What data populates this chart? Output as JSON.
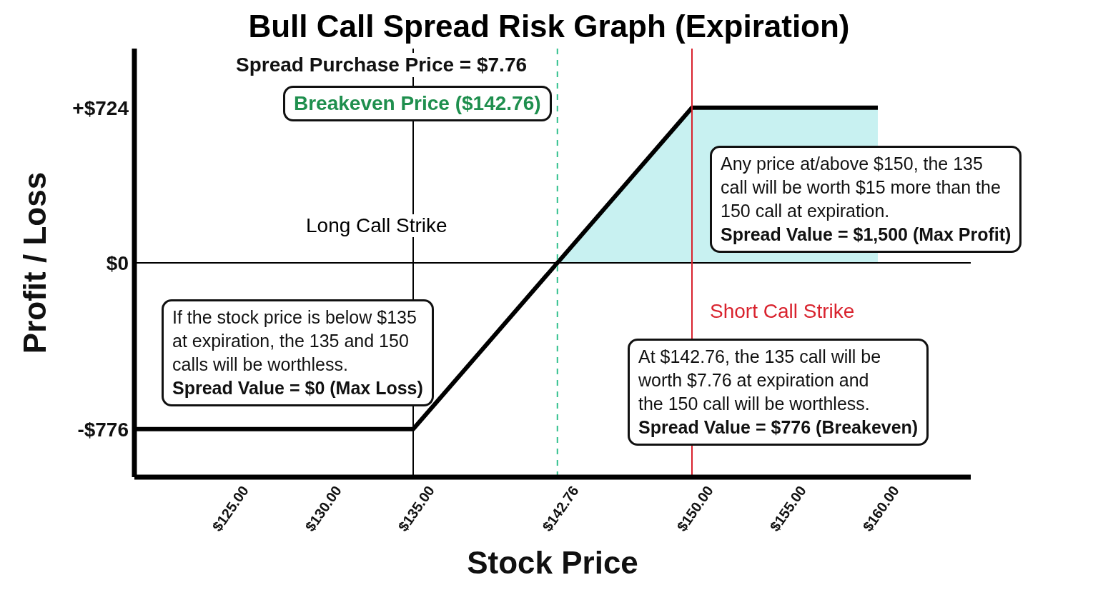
{
  "chart_data": {
    "type": "line",
    "title": "Bull Call Spread Risk Graph (Expiration)",
    "xlabel": "Stock Price",
    "ylabel": "Profit / Loss",
    "xlim": [
      120,
      165
    ],
    "xticks": [
      {
        "value": 125,
        "label": "$125.00"
      },
      {
        "value": 130,
        "label": "$130.00"
      },
      {
        "value": 135,
        "label": "$135.00"
      },
      {
        "value": 142.76,
        "label": "$142.76"
      },
      {
        "value": 150,
        "label": "$150.00"
      },
      {
        "value": 155,
        "label": "$155.00"
      },
      {
        "value": 160,
        "label": "$160.00"
      }
    ],
    "ylim": [
      -1000,
      1000
    ],
    "yticks": [
      {
        "value": -776,
        "label": "-$776"
      },
      {
        "value": 0,
        "label": "$0"
      },
      {
        "value": 724,
        "label": "+$724"
      }
    ],
    "series": [
      {
        "type": "area",
        "color": "#c8f1f1",
        "x": [
          142.76,
          150,
          160
        ],
        "values": [
          0,
          724,
          724
        ]
      },
      {
        "color": "#000000",
        "x": [
          120,
          135,
          150,
          160
        ],
        "values": [
          -776,
          -776,
          724,
          724
        ]
      }
    ],
    "ref_lines": [
      {
        "axis": "y",
        "value": 0,
        "color": "#000000",
        "line_style": "solid"
      },
      {
        "axis": "x",
        "value": 135,
        "label": "Long Call Strike",
        "color": "#000000",
        "line_style": "solid"
      },
      {
        "axis": "x",
        "value": 142.76,
        "label": "Breakeven Price ($142.76)",
        "color": "#2ebf8c",
        "line_style": "dashed"
      },
      {
        "axis": "x",
        "value": 150,
        "label": "Short Call Strike",
        "color": "#d9232e",
        "line_style": "solid"
      }
    ],
    "annotations": [
      "Spread Purchase Price = $7.76",
      "Any price at/above $150, the 135\ncall will be worth $15 more than the\n150 call at expiration.\nSpread Value = $1,500 (Max Profit)",
      "If the stock price is below $135\nat expiration, the 135 and 150\ncalls will be worthless.\nSpread Value = $0 (Max Loss)",
      "At $142.76, the 135 call will be\nworth $7.76 at expiration and\nthe 150 call will be worthless.\nSpread Value = $776 (Breakeven)"
    ],
    "tick_labels": "xy"
  }
}
